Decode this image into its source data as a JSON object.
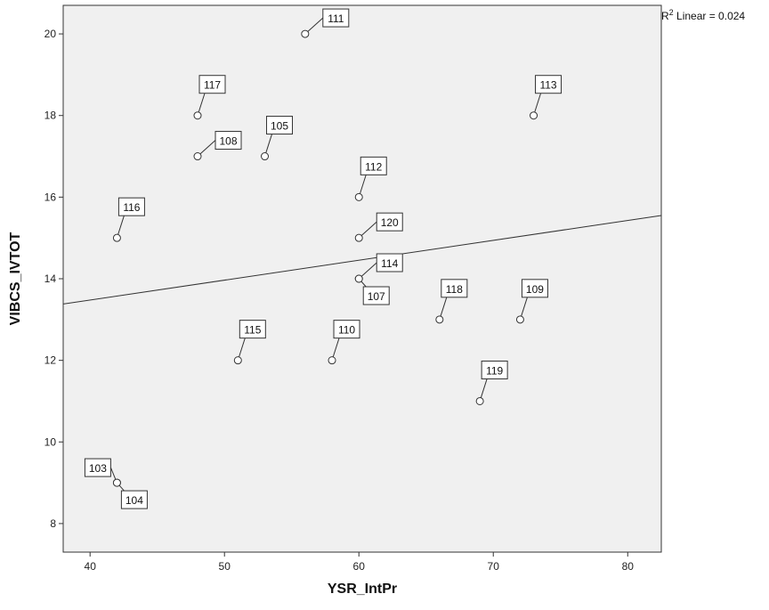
{
  "chart_data": {
    "type": "scatter",
    "xlabel": "YSR_IntPr",
    "ylabel": "VIBCS_IVTOT",
    "xlim": [
      38,
      82.5
    ],
    "ylim": [
      7.3,
      20.7
    ],
    "x_ticks": [
      40,
      50,
      60,
      70,
      80
    ],
    "y_ticks": [
      8,
      10,
      12,
      14,
      16,
      18,
      20
    ],
    "fit_line": {
      "type": "linear",
      "label_prefix": "R",
      "label_sup": "2",
      "label_suffix": " Linear = 0.024",
      "y_at_xmin": 13.38,
      "y_at_xmax": 15.55
    },
    "points": [
      {
        "id": "103",
        "x": 42,
        "y": 9,
        "label_side": "above-left"
      },
      {
        "id": "104",
        "x": 42,
        "y": 9,
        "label_side": "below-right"
      },
      {
        "id": "105",
        "x": 53,
        "y": 17,
        "label_side": "above-right"
      },
      {
        "id": "107",
        "x": 60,
        "y": 14,
        "label_side": "below-right"
      },
      {
        "id": "108",
        "x": 48,
        "y": 17,
        "label_side": "right"
      },
      {
        "id": "109",
        "x": 72,
        "y": 13,
        "label_side": "above-right"
      },
      {
        "id": "110",
        "x": 58,
        "y": 12,
        "label_side": "above-right"
      },
      {
        "id": "111",
        "x": 56,
        "y": 20,
        "label_side": "right"
      },
      {
        "id": "112",
        "x": 60,
        "y": 16,
        "label_side": "above-right"
      },
      {
        "id": "113",
        "x": 73,
        "y": 18,
        "label_side": "above-right"
      },
      {
        "id": "114",
        "x": 60,
        "y": 14,
        "label_side": "right"
      },
      {
        "id": "115",
        "x": 51,
        "y": 12,
        "label_side": "above-right"
      },
      {
        "id": "116",
        "x": 42,
        "y": 15,
        "label_side": "above-right"
      },
      {
        "id": "117",
        "x": 48,
        "y": 18,
        "label_side": "above-right"
      },
      {
        "id": "118",
        "x": 66,
        "y": 13,
        "label_side": "above-right"
      },
      {
        "id": "119",
        "x": 69,
        "y": 11,
        "label_side": "above-right"
      },
      {
        "id": "120",
        "x": 60,
        "y": 15,
        "label_side": "right"
      }
    ]
  },
  "colors": {
    "plot_background": "#f0f0f0",
    "frame": "#333333",
    "marker_fill": "#ffffff",
    "marker_stroke": "#333333",
    "fit_line": "#333333",
    "label_box_fill": "#ffffff"
  }
}
